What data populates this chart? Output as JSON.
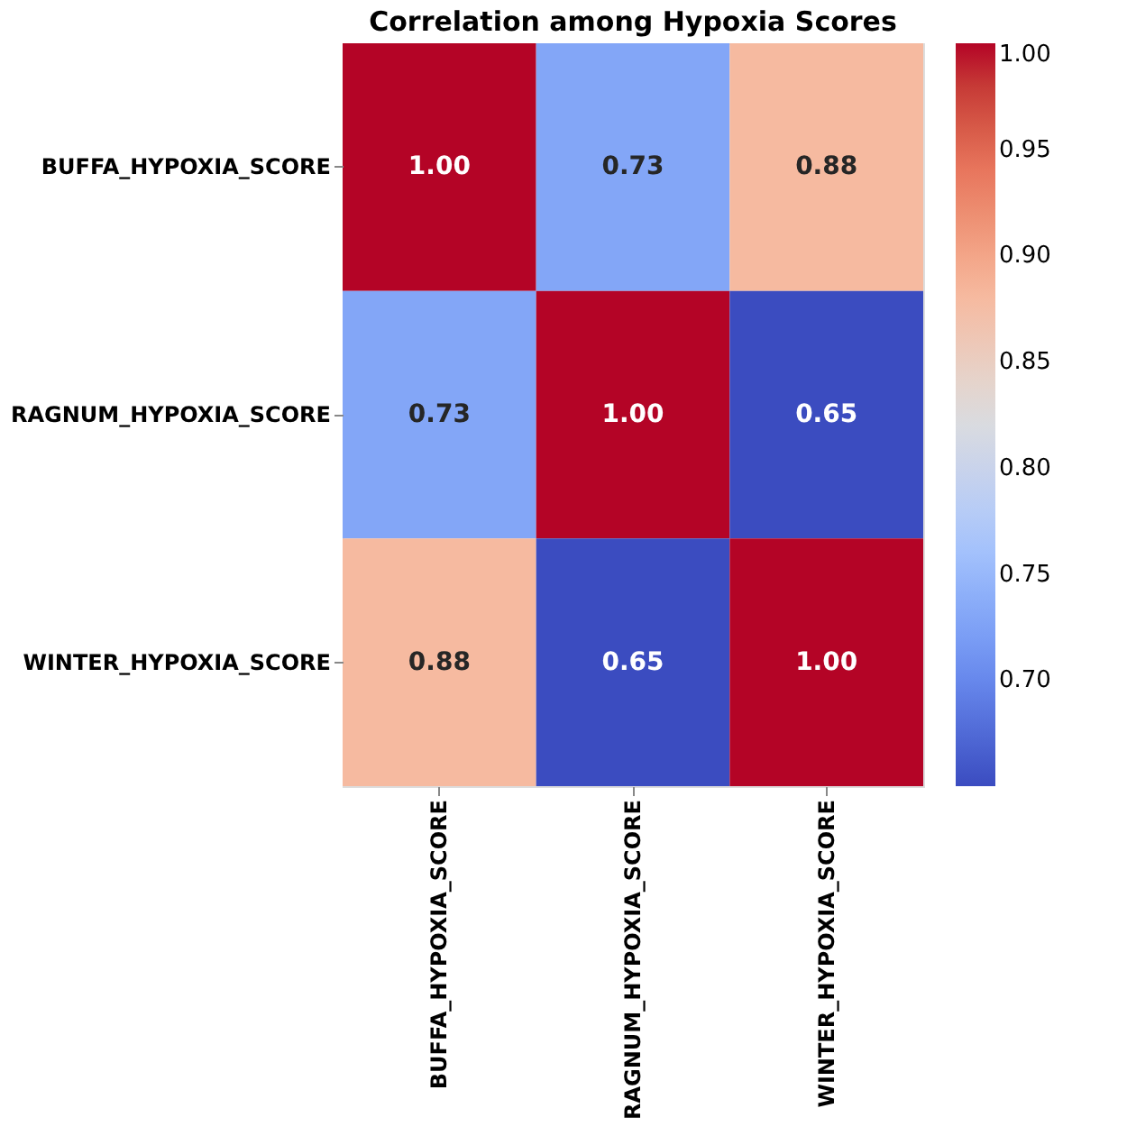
{
  "chart_data": {
    "type": "heatmap",
    "title": "Correlation among Hypoxia Scores",
    "categories": [
      "BUFFA_HYPOXIA_SCORE",
      "RAGNUM_HYPOXIA_SCORE",
      "WINTER_HYPOXIA_SCORE"
    ],
    "y_categories": [
      "BUFFA_HYPOXIA_SCORE",
      "RAGNUM_HYPOXIA_SCORE",
      "WINTER_HYPOXIA_SCORE"
    ],
    "cells": [
      [
        1.0,
        0.73,
        0.88
      ],
      [
        0.73,
        1.0,
        0.65
      ],
      [
        0.88,
        0.65,
        1.0
      ]
    ],
    "cell_labels": [
      [
        "1.00",
        "0.73",
        "0.88"
      ],
      [
        "0.73",
        "1.00",
        "0.65"
      ],
      [
        "0.88",
        "0.65",
        "1.00"
      ]
    ],
    "clim": [
      0.65,
      1.0
    ],
    "cticks": [
      {
        "value": 0.7,
        "label": "0.70"
      },
      0.75,
      {
        "value": 0.8,
        "label": "0.80"
      },
      0.85,
      {
        "value": 0.9,
        "label": "0.90"
      },
      0.95,
      {
        "value": 1.0,
        "label": "1.00"
      }
    ],
    "data_labels": true
  }
}
